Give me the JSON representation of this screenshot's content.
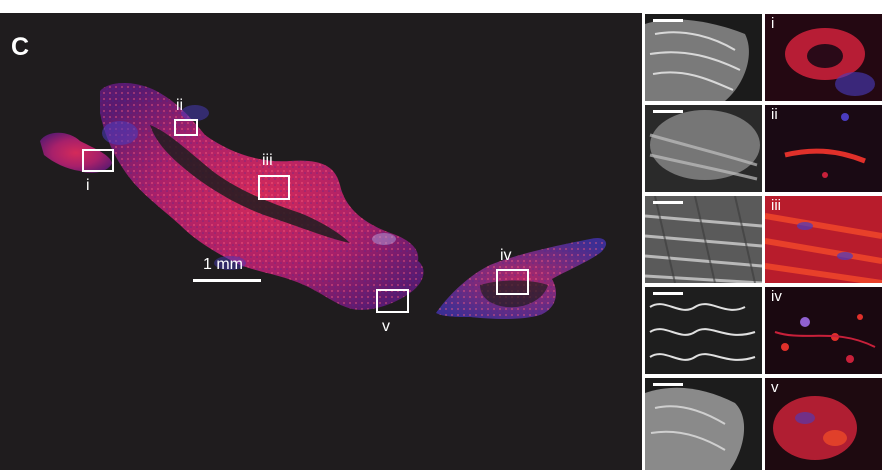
{
  "panel": {
    "letter": "C"
  },
  "scale_bar": {
    "label": "1 mm"
  },
  "regions": [
    {
      "label": "i"
    },
    {
      "label": "ii"
    },
    {
      "label": "iii"
    },
    {
      "label": "iv"
    },
    {
      "label": "v"
    }
  ],
  "insets": [
    {
      "label": "i"
    },
    {
      "label": "ii"
    },
    {
      "label": "iii"
    },
    {
      "label": "iv"
    },
    {
      "label": "v"
    }
  ],
  "colors": {
    "background": "#1f1c1e",
    "tissue_red": "#c8204a",
    "tissue_magenta": "#b02070",
    "nuclei_blue": "#4a3cc0",
    "border": "#ffffff"
  }
}
